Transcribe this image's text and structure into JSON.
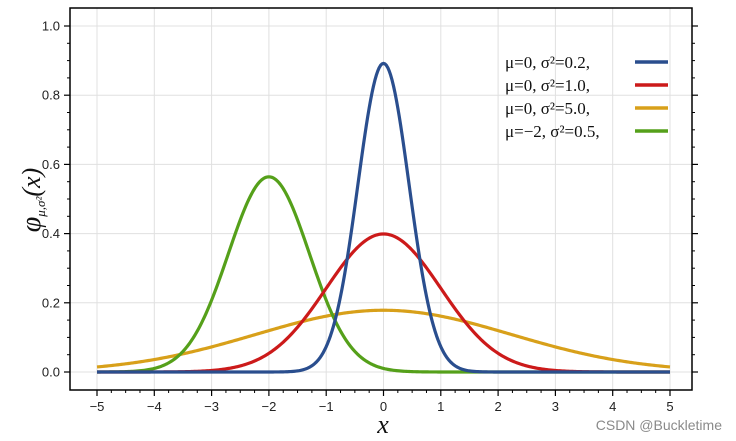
{
  "chart_data": {
    "type": "line",
    "xlabel": "x",
    "ylabel": "φμ,σ²(x)",
    "xlim": [
      -5,
      5
    ],
    "ylim": [
      0,
      1.05
    ],
    "x_ticks": [
      "−5",
      "−4",
      "−3",
      "−2",
      "−1",
      "0",
      "1",
      "2",
      "3",
      "4",
      "5"
    ],
    "y_ticks": [
      "0.0",
      "0.2",
      "0.4",
      "0.6",
      "0.8",
      "1.0"
    ],
    "grid": true,
    "legend_position": "top-right",
    "series": [
      {
        "label": "μ=0,   σ²=0.2,",
        "mu": 0,
        "sigma2": 0.2,
        "color": "#2a4e8e"
      },
      {
        "label": "μ=0,   σ²=1.0,",
        "mu": 0,
        "sigma2": 1.0,
        "color": "#cc1a1a"
      },
      {
        "label": "μ=0,   σ²=5.0,",
        "mu": 0,
        "sigma2": 5.0,
        "color": "#d8a01a"
      },
      {
        "label": "μ=−2, σ²=0.5,",
        "mu": -2,
        "sigma2": 0.5,
        "color": "#55a01a"
      }
    ]
  },
  "watermark": "CSDN @Buckletime"
}
